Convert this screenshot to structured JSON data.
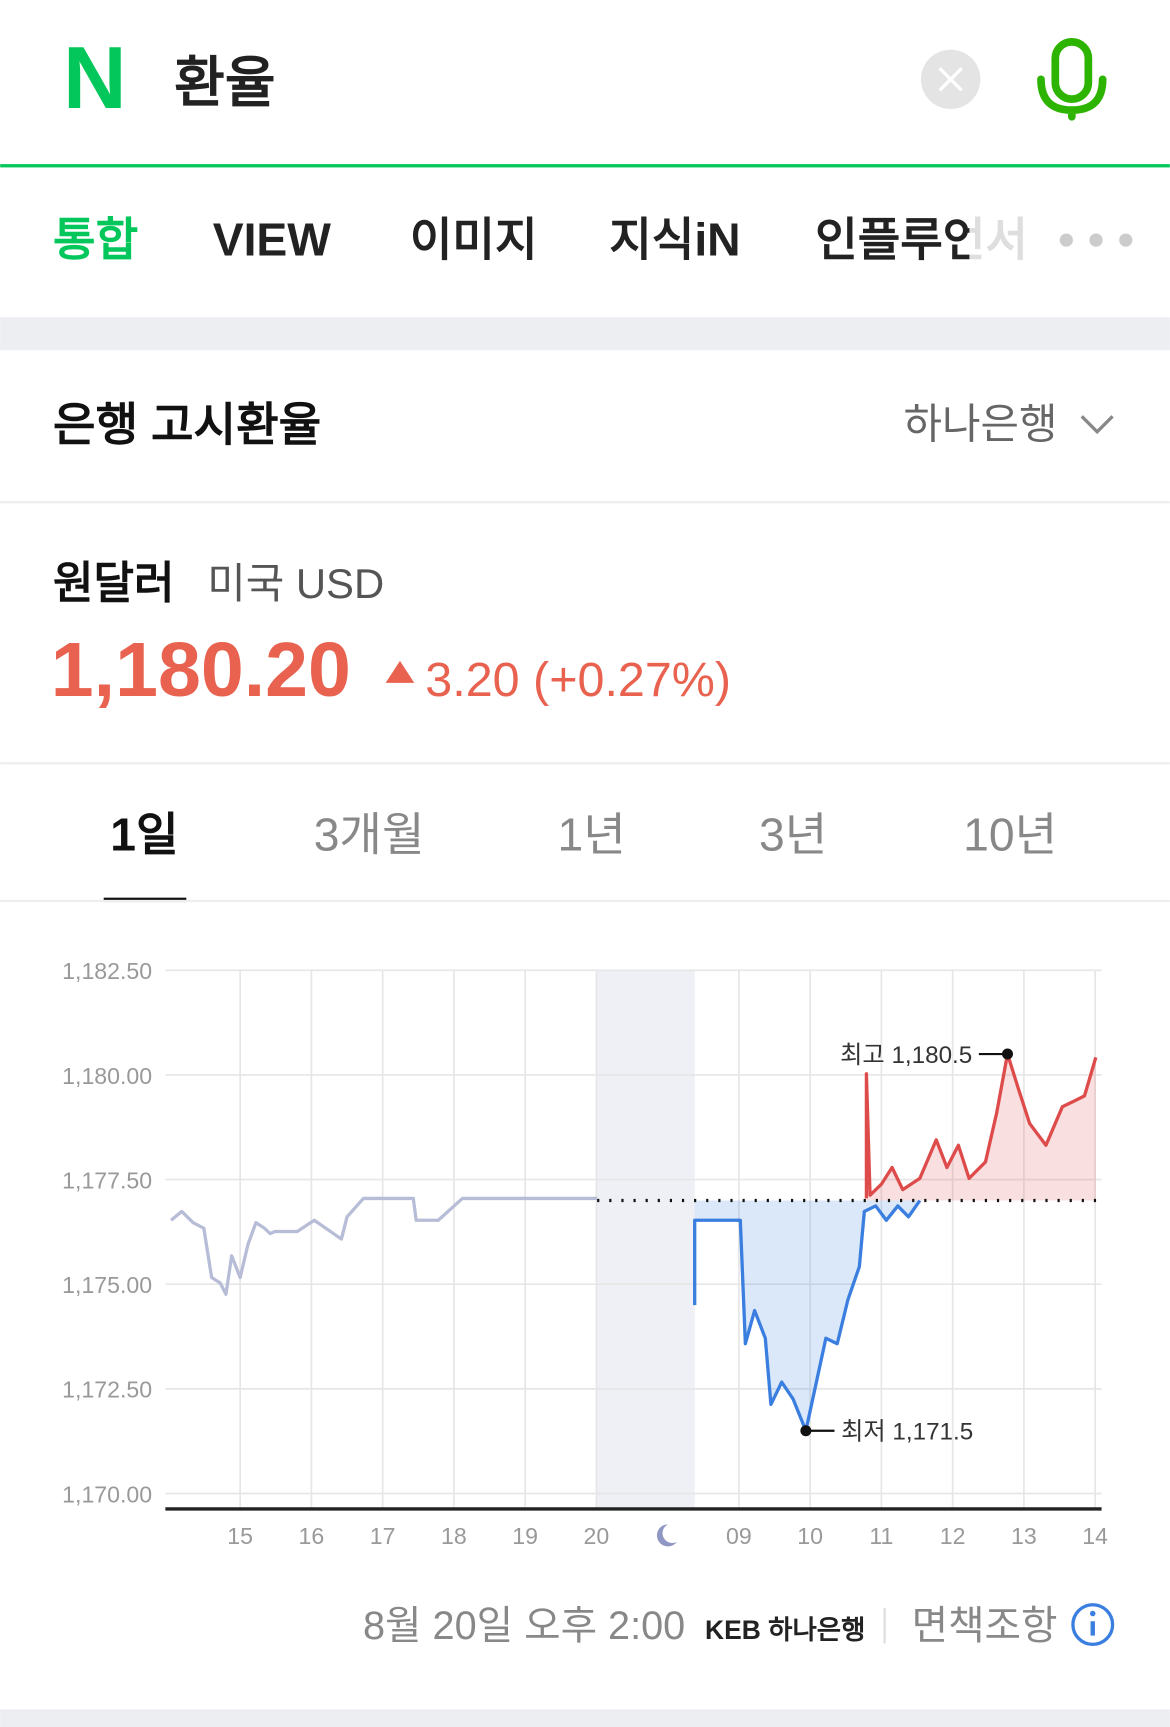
{
  "search": {
    "logo": "N",
    "query": "환율"
  },
  "tabs": [
    "통합",
    "VIEW",
    "이미지",
    "지식iN",
    "인플루언서"
  ],
  "card": {
    "title": "은행 고시환율",
    "bank": "하나은행",
    "currency": "원달러",
    "currency_sub": "미국 USD",
    "price": "1,180.20",
    "change": "3.20 (+0.27%)",
    "periods": [
      "1일",
      "3개월",
      "1년",
      "3년",
      "10년"
    ],
    "footer": {
      "time": "8월 20일 오후 2:00",
      "bank_logo": "KEB 하나은행",
      "disclaimer": "면책조항"
    }
  },
  "chart_data": {
    "type": "line",
    "xlim": [
      -1.05,
      12.09
    ],
    "ylim": [
      1170,
      1182.5
    ],
    "xticks": [
      {
        "value": 0,
        "label": "15"
      },
      {
        "value": 1,
        "label": "16"
      },
      {
        "value": 2,
        "label": "17"
      },
      {
        "value": 3,
        "label": "18"
      },
      {
        "value": 4,
        "label": "19"
      },
      {
        "value": 5,
        "label": "20"
      },
      {
        "value": 7,
        "label": "09"
      },
      {
        "value": 8,
        "label": "10"
      },
      {
        "value": 9,
        "label": "11"
      },
      {
        "value": 10,
        "label": "12"
      },
      {
        "value": 11,
        "label": "13"
      },
      {
        "value": 12,
        "label": "14"
      }
    ],
    "yticks": [
      {
        "value": 1170,
        "label": "1,170.00"
      },
      {
        "value": 1172.5,
        "label": "1,172.50"
      },
      {
        "value": 1175,
        "label": "1,175.00"
      },
      {
        "value": 1177.5,
        "label": "1,177.50"
      },
      {
        "value": 1180,
        "label": "1,180.00"
      },
      {
        "value": 1182.5,
        "label": "1,182.50"
      }
    ],
    "grid": true,
    "reference": 1177.0,
    "night_band": [
      5.01,
      6.38
    ],
    "series": [
      {
        "color": "#b7bdd6",
        "fill": false,
        "x": [
          -0.97,
          -0.82,
          -0.66,
          -0.51,
          -0.4,
          -0.28,
          -0.2,
          -0.12,
          0,
          0.11,
          0.22,
          0.34,
          0.42,
          0.49,
          0.8,
          1.04,
          1.42,
          1.5,
          1.73,
          2.43,
          2.47,
          2.78,
          3.12,
          5.01
        ],
        "values": [
          1176.53,
          1176.74,
          1176.47,
          1176.34,
          1175.16,
          1175.03,
          1174.76,
          1175.68,
          1175.16,
          1175.95,
          1176.47,
          1176.34,
          1176.21,
          1176.26,
          1176.26,
          1176.53,
          1176.08,
          1176.61,
          1177.05,
          1177.05,
          1176.53,
          1176.53,
          1177.05,
          1177.05
        ]
      },
      {
        "color": "#3a7ee0",
        "fill": true,
        "x": [
          6.38,
          6.38,
          7.02,
          7.09,
          7.22,
          7.37,
          7.45,
          7.6,
          7.76,
          7.94,
          8.07,
          8.22,
          8.38,
          8.53,
          8.69,
          8.76,
          8.92,
          9.07,
          9.23,
          9.38,
          9.54
        ],
        "values": [
          1174.5,
          1176.53,
          1176.53,
          1173.58,
          1174.37,
          1173.71,
          1172.13,
          1172.66,
          1172.26,
          1171.5,
          1172.53,
          1173.71,
          1173.58,
          1174.63,
          1175.42,
          1176.74,
          1176.87,
          1176.53,
          1176.87,
          1176.61,
          1177.0
        ]
      },
      {
        "color": "#de4b4b",
        "fill": true,
        "x": [
          8.79,
          8.79,
          8.84,
          9.0,
          9.15,
          9.3,
          9.54,
          9.77,
          9.92,
          10.08,
          10.23,
          10.46,
          10.62,
          10.77,
          10.93,
          11.08,
          11.31,
          11.54,
          11.7,
          11.85,
          12.01
        ],
        "values": [
          1177.05,
          1180.03,
          1177.13,
          1177.39,
          1177.79,
          1177.26,
          1177.53,
          1178.45,
          1177.79,
          1178.32,
          1177.53,
          1177.92,
          1179.11,
          1180.5,
          1179.63,
          1178.84,
          1178.32,
          1179.24,
          1179.37,
          1179.5,
          1180.42
        ]
      }
    ],
    "annotations": [
      {
        "text": "최고 1,180.5",
        "x": 10.77,
        "y": 1180.5,
        "side": "left"
      },
      {
        "text": "최저 1,171.5",
        "x": 7.94,
        "y": 1171.5,
        "side": "right"
      }
    ]
  }
}
